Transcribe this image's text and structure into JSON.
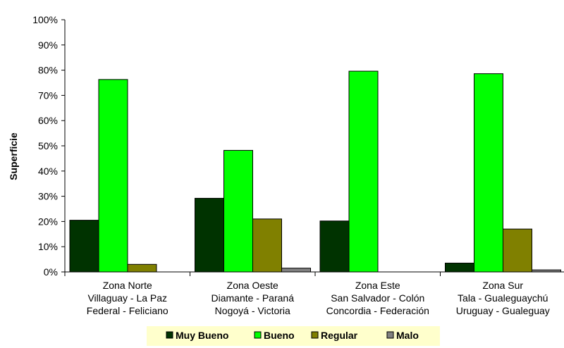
{
  "chart_data": {
    "type": "bar",
    "ylabel": "Superficie",
    "ylim": [
      0,
      100
    ],
    "yticks": [
      "0%",
      "10%",
      "20%",
      "30%",
      "40%",
      "50%",
      "60%",
      "70%",
      "80%",
      "90%",
      "100%"
    ],
    "grid": false,
    "legend_position": "bottom",
    "categories": [
      [
        "Zona Norte",
        "Villaguay - La Paz",
        "Federal - Feliciano"
      ],
      [
        "Zona Oeste",
        "Diamante - Paraná",
        "Nogoyá - Victoria"
      ],
      [
        "Zona Este",
        "San Salvador - Colón",
        "Concordia - Federación"
      ],
      [
        "Zona Sur",
        "Tala - Gualeguaychú",
        "Uruguay - Gualeguay"
      ]
    ],
    "series": [
      {
        "name": "Muy Bueno",
        "color": "#003300",
        "values": [
          20.5,
          29.2,
          20.2,
          3.5
        ]
      },
      {
        "name": "Bueno",
        "color": "#00ff00",
        "values": [
          76.3,
          48.2,
          79.6,
          78.6
        ]
      },
      {
        "name": "Regular",
        "color": "#808000",
        "values": [
          3.0,
          21.0,
          0,
          17.0
        ]
      },
      {
        "name": "Malo",
        "color": "#808080",
        "values": [
          0,
          1.5,
          0,
          0.8
        ]
      }
    ],
    "legend_background": "#ffffcc"
  }
}
